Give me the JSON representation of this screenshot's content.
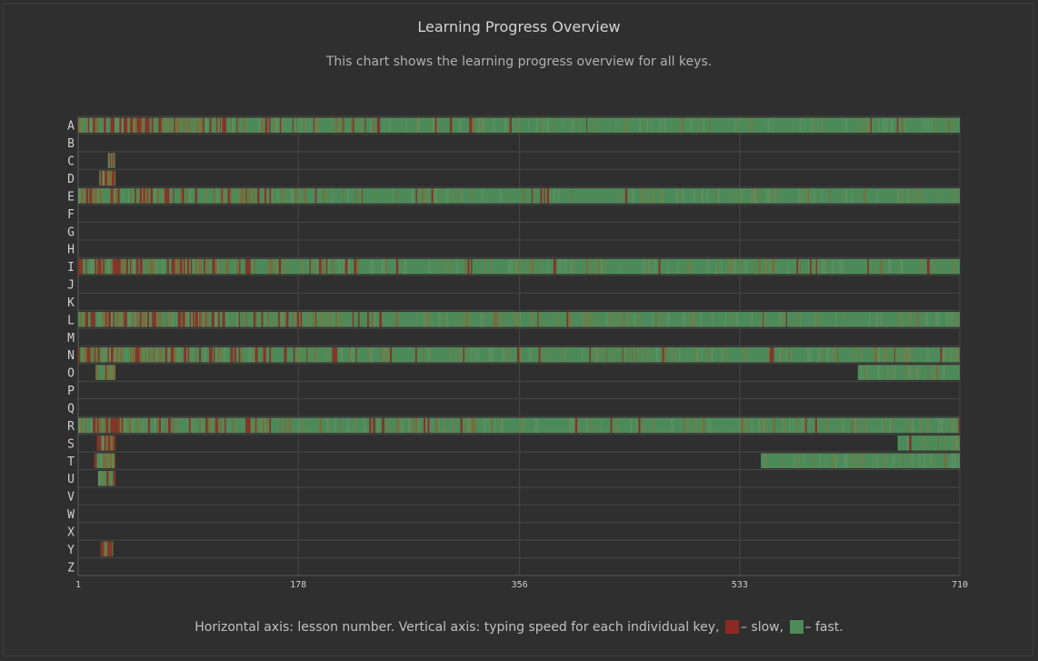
{
  "chart_data": {
    "type": "heatmap",
    "title": "Learning Progress Overview",
    "subtitle": "This chart shows the learning progress overview for all keys.",
    "x_ticks": [
      1,
      178,
      356,
      533,
      710
    ],
    "xlim": [
      1,
      710
    ],
    "y_categories": [
      "A",
      "B",
      "C",
      "D",
      "E",
      "F",
      "G",
      "H",
      "I",
      "J",
      "K",
      "L",
      "M",
      "N",
      "O",
      "P",
      "Q",
      "R",
      "S",
      "T",
      "U",
      "V",
      "W",
      "X",
      "Y",
      "Z"
    ],
    "colors": {
      "slow": "#8b2a24",
      "fast": "#4e8a5a"
    },
    "key_ranges": {
      "A": [
        [
          1,
          710
        ]
      ],
      "C": [
        [
          25,
          30
        ]
      ],
      "D": [
        [
          18,
          30
        ]
      ],
      "E": [
        [
          1,
          710
        ]
      ],
      "I": [
        [
          1,
          710
        ]
      ],
      "L": [
        [
          1,
          710
        ]
      ],
      "N": [
        [
          1,
          710
        ]
      ],
      "O": [
        [
          15,
          30
        ],
        [
          628,
          710
        ]
      ],
      "R": [
        [
          1,
          710
        ]
      ],
      "S": [
        [
          16,
          30
        ],
        [
          660,
          710
        ]
      ],
      "T": [
        [
          14,
          30
        ],
        [
          550,
          710
        ]
      ],
      "U": [
        [
          17,
          30
        ]
      ],
      "Y": [
        [
          19,
          28
        ]
      ]
    },
    "caption_prefix": "Horizontal axis: lesson number. Vertical axis: typing speed for each individual key,",
    "caption_slow": "– slow,",
    "caption_fast": "– fast."
  }
}
